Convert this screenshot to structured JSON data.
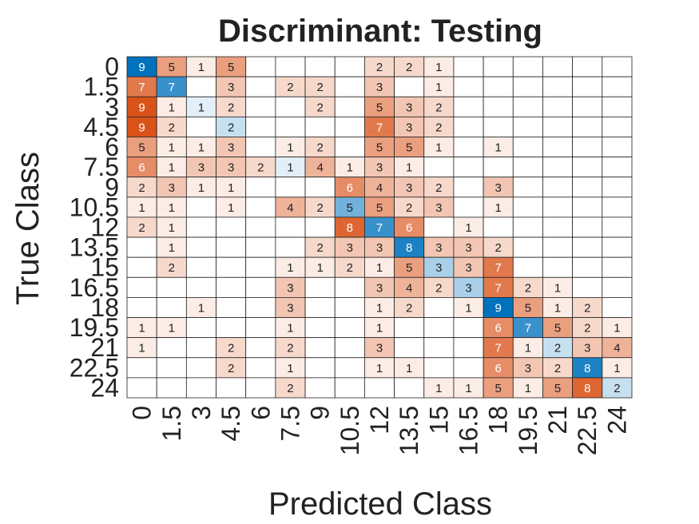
{
  "chart_data": {
    "type": "heatmap",
    "title": "Discriminant: Testing",
    "xlabel": "Predicted Class",
    "ylabel": "True Class",
    "row_labels": [
      "0",
      "1.5",
      "3",
      "4.5",
      "6",
      "7.5",
      "9",
      "10.5",
      "12",
      "13.5",
      "15",
      "16.5",
      "18",
      "19.5",
      "21",
      "22.5",
      "24"
    ],
    "col_labels": [
      "0",
      "1.5",
      "3",
      "4.5",
      "6",
      "7.5",
      "9",
      "10.5",
      "12",
      "13.5",
      "15",
      "16.5",
      "18",
      "19.5",
      "21",
      "22.5",
      "24"
    ],
    "matrix": [
      [
        9,
        5,
        1,
        5,
        0,
        0,
        0,
        0,
        2,
        2,
        1,
        0,
        0,
        0,
        0,
        0,
        0
      ],
      [
        7,
        7,
        0,
        3,
        0,
        2,
        2,
        0,
        3,
        0,
        1,
        0,
        0,
        0,
        0,
        0,
        0
      ],
      [
        9,
        1,
        1,
        2,
        0,
        0,
        2,
        0,
        5,
        3,
        2,
        0,
        0,
        0,
        0,
        0,
        0
      ],
      [
        9,
        2,
        0,
        2,
        0,
        0,
        0,
        0,
        7,
        3,
        2,
        0,
        0,
        0,
        0,
        0,
        0
      ],
      [
        5,
        1,
        1,
        3,
        0,
        1,
        2,
        0,
        5,
        5,
        1,
        0,
        1,
        0,
        0,
        0,
        0
      ],
      [
        6,
        1,
        3,
        3,
        2,
        1,
        4,
        1,
        3,
        1,
        0,
        0,
        0,
        0,
        0,
        0,
        0
      ],
      [
        2,
        3,
        1,
        1,
        0,
        0,
        0,
        6,
        4,
        3,
        2,
        0,
        3,
        0,
        0,
        0,
        0
      ],
      [
        1,
        1,
        0,
        1,
        0,
        4,
        2,
        5,
        5,
        2,
        3,
        0,
        1,
        0,
        0,
        0,
        0
      ],
      [
        2,
        1,
        0,
        0,
        0,
        0,
        0,
        8,
        7,
        6,
        0,
        1,
        0,
        0,
        0,
        0,
        0
      ],
      [
        0,
        1,
        0,
        0,
        0,
        0,
        2,
        3,
        3,
        8,
        3,
        3,
        2,
        0,
        0,
        0,
        0
      ],
      [
        0,
        2,
        0,
        0,
        0,
        1,
        1,
        2,
        1,
        5,
        3,
        3,
        7,
        0,
        0,
        0,
        0
      ],
      [
        0,
        0,
        0,
        0,
        0,
        3,
        0,
        0,
        3,
        4,
        2,
        3,
        7,
        2,
        1,
        0,
        0
      ],
      [
        0,
        0,
        1,
        0,
        0,
        3,
        0,
        0,
        1,
        2,
        0,
        1,
        9,
        5,
        1,
        2,
        0
      ],
      [
        1,
        1,
        0,
        0,
        0,
        1,
        0,
        0,
        1,
        0,
        0,
        0,
        6,
        7,
        5,
        2,
        1
      ],
      [
        1,
        0,
        0,
        2,
        0,
        2,
        0,
        0,
        3,
        0,
        0,
        0,
        7,
        1,
        2,
        3,
        4
      ],
      [
        0,
        0,
        0,
        2,
        0,
        1,
        0,
        0,
        1,
        1,
        0,
        0,
        6,
        3,
        2,
        8,
        1
      ],
      [
        0,
        0,
        0,
        0,
        0,
        2,
        0,
        0,
        0,
        0,
        1,
        1,
        5,
        1,
        5,
        8,
        2
      ]
    ],
    "diagonal_color": "#0072BD",
    "offdiagonal_color": "#D95319",
    "grid": true
  }
}
